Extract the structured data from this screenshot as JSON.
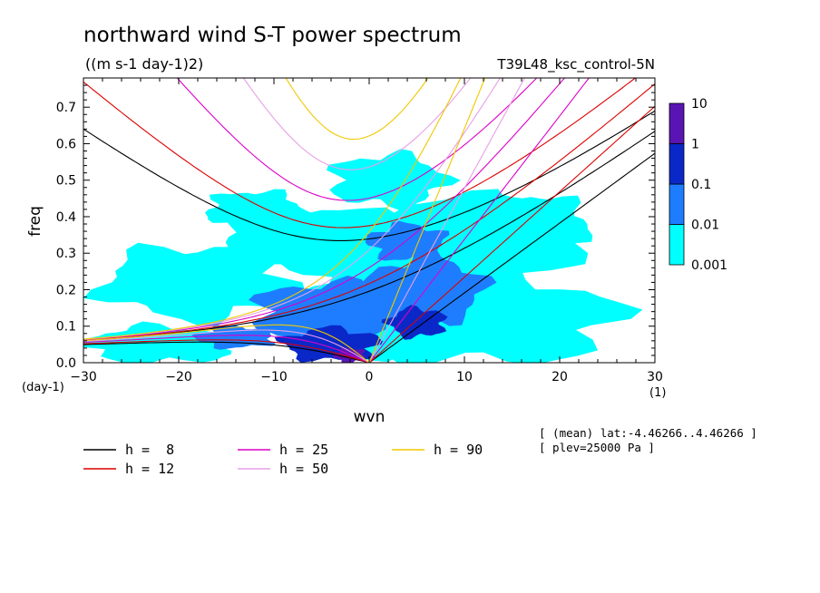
{
  "header": {
    "title": "northward wind S-T power spectrum",
    "units": "((m s-1 day-1)2)",
    "run_label": "T39L48_ksc_control-5N"
  },
  "meta": {
    "lat_info": "[ (mean) lat:-4.46266..4.46266 ]",
    "plev_info": "[ plev=25000 Pa ]"
  },
  "axes": {
    "x_unit_label": "(1)",
    "y_unit_label": "(day-1)"
  },
  "chart_data": {
    "type": "heatmap",
    "title": "northward wind S-T power spectrum",
    "xlabel": "wvn",
    "ylabel": "freq",
    "xlim": [
      -30,
      30
    ],
    "ylim": [
      0,
      0.78
    ],
    "xticks": [
      -30,
      -20,
      -10,
      0,
      10,
      20,
      30
    ],
    "yticks": [
      0.0,
      0.1,
      0.2,
      0.3,
      0.4,
      0.5,
      0.6,
      0.7
    ],
    "colorbar": {
      "levels": [
        "0.001",
        "0.01",
        "0.1",
        "1",
        "10"
      ],
      "colors": [
        "#00ffff",
        "#1e7dff",
        "#0a28c8",
        "#5a14b4"
      ]
    },
    "contour_regions": [
      {
        "level": "0.001",
        "color": "#00ffff",
        "regions": [
          {
            "x": -18,
            "y": 0.22,
            "rx": 10,
            "ry": 0.1
          },
          {
            "x": -5,
            "y": 0.33,
            "rx": 11,
            "ry": 0.09
          },
          {
            "x": 8,
            "y": 0.3,
            "rx": 13,
            "ry": 0.15
          },
          {
            "x": 12,
            "y": 0.12,
            "rx": 14,
            "ry": 0.12
          },
          {
            "x": -22,
            "y": 0.05,
            "rx": 8,
            "ry": 0.05
          },
          {
            "x": 2,
            "y": 0.15,
            "rx": 10,
            "ry": 0.13
          },
          {
            "x": 17,
            "y": 0.38,
            "rx": 6,
            "ry": 0.08
          },
          {
            "x": -12,
            "y": 0.42,
            "rx": 5,
            "ry": 0.05
          },
          {
            "x": 2,
            "y": 0.5,
            "rx": 6,
            "ry": 0.07
          }
        ]
      },
      {
        "level": "0.01",
        "color": "#1e7dff",
        "regions": [
          {
            "x": -4,
            "y": 0.14,
            "rx": 8,
            "ry": 0.08
          },
          {
            "x": 6,
            "y": 0.2,
            "rx": 6,
            "ry": 0.09
          },
          {
            "x": 4,
            "y": 0.33,
            "rx": 4,
            "ry": 0.05
          },
          {
            "x": -14,
            "y": 0.07,
            "rx": 4,
            "ry": 0.03
          }
        ]
      },
      {
        "level": "0.1",
        "color": "#0a28c8",
        "regions": [
          {
            "x": -4,
            "y": 0.05,
            "rx": 5,
            "ry": 0.045
          },
          {
            "x": 5,
            "y": 0.11,
            "rx": 3,
            "ry": 0.04
          }
        ]
      },
      {
        "level": "1",
        "color": "#5a14b4",
        "regions": [
          {
            "x": -2,
            "y": 0.02,
            "rx": 1.6,
            "ry": 0.02
          }
        ]
      }
    ],
    "series": [
      {
        "name": "h =  8",
        "h": 8,
        "color": "#000000"
      },
      {
        "name": "h = 12",
        "h": 12,
        "color": "#dc0000"
      },
      {
        "name": "h = 25",
        "h": 25,
        "color": "#dc00c8"
      },
      {
        "name": "h = 50",
        "h": 50,
        "color": "#e6a0e6"
      },
      {
        "name": "h = 90",
        "h": 90,
        "color": "#f0c800"
      }
    ]
  }
}
